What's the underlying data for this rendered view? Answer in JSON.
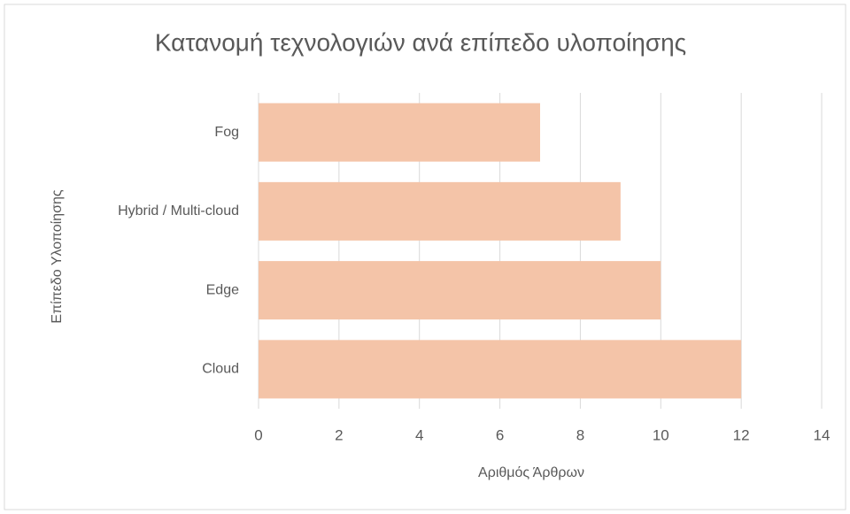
{
  "chart_data": {
    "type": "hbar",
    "title": "Κατανομή τεχνολογιών ανά επίπεδο υλοποίησης",
    "categories": [
      "Fog",
      "Hybrid / Multi-cloud",
      "Edge",
      "Cloud"
    ],
    "values": [
      7,
      9,
      10,
      12
    ],
    "color": "#f4c4a8",
    "xlabel": "Αριθμός Άρθρων",
    "ylabel": "Επίπεδο Υλοποίησης",
    "xlim": [
      0,
      14
    ],
    "xticks": [
      0,
      2,
      4,
      6,
      8,
      10,
      12,
      14
    ],
    "grid": true
  }
}
